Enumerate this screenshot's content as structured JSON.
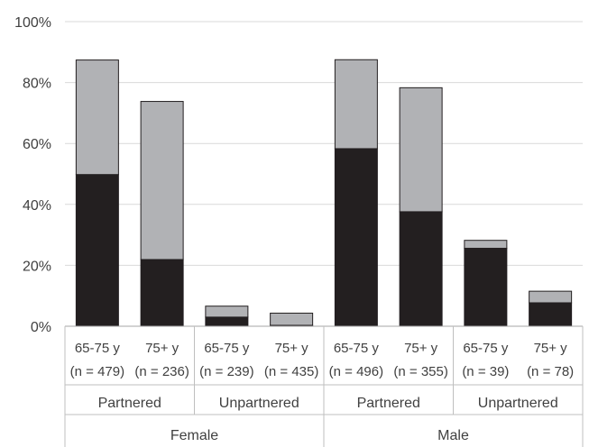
{
  "chart_data": {
    "type": "bar",
    "stacked": true,
    "title": "",
    "xlabel": "",
    "ylabel": "",
    "ylim": [
      0,
      100
    ],
    "y_ticks": [
      "0%",
      "20%",
      "40%",
      "60%",
      "80%",
      "100%"
    ],
    "y_tick_values": [
      0,
      20,
      40,
      60,
      80,
      100
    ],
    "grid": true,
    "legend": "none",
    "categories": [
      {
        "line1": "65-75 y",
        "line2": "(n =  479)",
        "status": "Partnered",
        "sex": "Female"
      },
      {
        "line1": "75+ y",
        "line2": "(n = 236)",
        "status": "Partnered",
        "sex": "Female"
      },
      {
        "line1": "65-75 y",
        "line2": "(n = 239)",
        "status": "Unpartnered",
        "sex": "Female"
      },
      {
        "line1": "75+ y",
        "line2": "(n = 435)",
        "status": "Unpartnered",
        "sex": "Female"
      },
      {
        "line1": "65-75 y",
        "line2": "(n = 496)",
        "status": "Partnered",
        "sex": "Male"
      },
      {
        "line1": "75+ y",
        "line2": "(n = 355)",
        "status": "Partnered",
        "sex": "Male"
      },
      {
        "line1": "65-75 y",
        "line2": "(n = 39)",
        "status": "Unpartnered",
        "sex": "Male"
      },
      {
        "line1": "75+ y",
        "line2": "(n = 78)",
        "status": "Unpartnered",
        "sex": "Male"
      }
    ],
    "status_groups": [
      "Partnered",
      "Unpartnered",
      "Partnered",
      "Unpartnered"
    ],
    "sex_groups": [
      "Female",
      "Male"
    ],
    "series": [
      {
        "values": [
          49.8,
          21.9,
          3.0,
          0.3,
          58.3,
          37.6,
          25.6,
          7.7
        ],
        "color": "#231f20"
      },
      {
        "values": [
          37.6,
          51.9,
          3.6,
          4.0,
          29.2,
          40.7,
          2.6,
          3.8
        ],
        "color": "#b1b2b5"
      }
    ]
  }
}
